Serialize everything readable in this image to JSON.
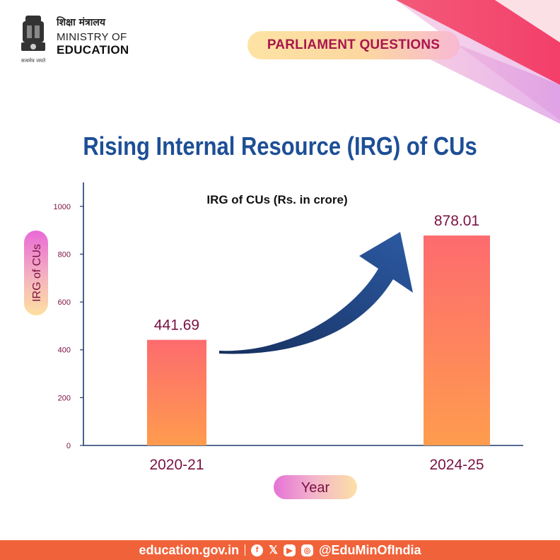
{
  "header": {
    "ministry_hindi": "शिक्षा मंत्रालय",
    "ministry_line1": "MINISTRY OF",
    "ministry_line2": "EDUCATION",
    "emblem_motto": "सत्यमेव जयते",
    "badge_label": "PARLIAMENT QUESTIONS"
  },
  "title": "Rising Internal Resource (IRG) of CUs",
  "chart_data": {
    "type": "bar",
    "title": "IRG of CUs (Rs. in crore)",
    "categories": [
      "2020-21",
      "2024-25"
    ],
    "values": [
      441.69,
      878.01
    ],
    "value_labels": [
      "441.69",
      "878.01"
    ],
    "ylabel": "IRG of CUs",
    "xlabel": "Year",
    "ylim": [
      0,
      1100
    ],
    "yticks": [
      0,
      200,
      400,
      600,
      800,
      1000
    ],
    "grid": false,
    "legend": "none",
    "annotation": "upward arrow from 2020-21 bar to 2024-25 bar",
    "colors": {
      "bar_top": "#fd6b6e",
      "bar_bottom": "#fe9c4e",
      "axis": "#1d3a6e",
      "label": "#7a1142"
    }
  },
  "footer": {
    "website": "education.gov.in",
    "handle": "@EduMinOfIndia",
    "icons": [
      "facebook-icon",
      "x-icon",
      "youtube-icon",
      "instagram-icon"
    ]
  },
  "colors": {
    "title": "#1d4f96",
    "badge_text": "#a8164c",
    "footer_bg": "#f0623a"
  }
}
